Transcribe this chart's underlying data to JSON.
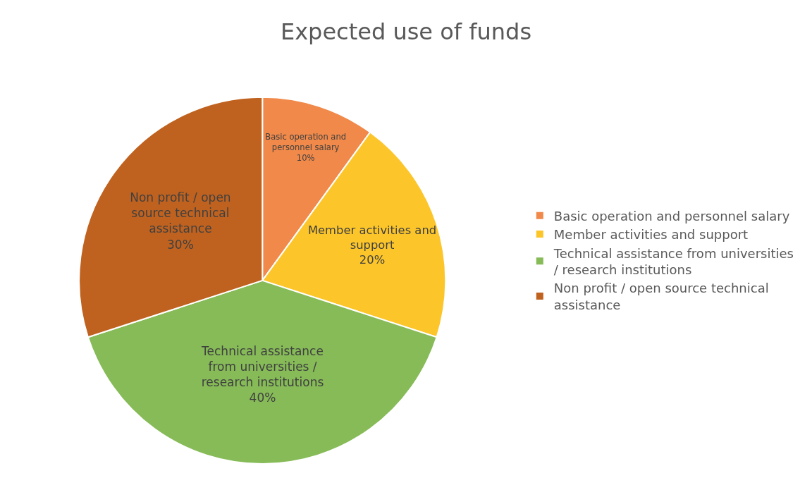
{
  "chart_data": {
    "type": "pie",
    "title": "Expected use of funds",
    "categories": [
      "Basic operation and personnel salary",
      "Member activities and support",
      "Technical assistance from universities / research institutions",
      "Non profit / open source technical assistance"
    ],
    "values": [
      10,
      20,
      40,
      30
    ],
    "value_labels": [
      "10%",
      "20%",
      "40%",
      "30%"
    ],
    "colors": [
      "#f0894a",
      "#fcc62a",
      "#86bb58",
      "#c0621f"
    ],
    "legend": "right"
  }
}
